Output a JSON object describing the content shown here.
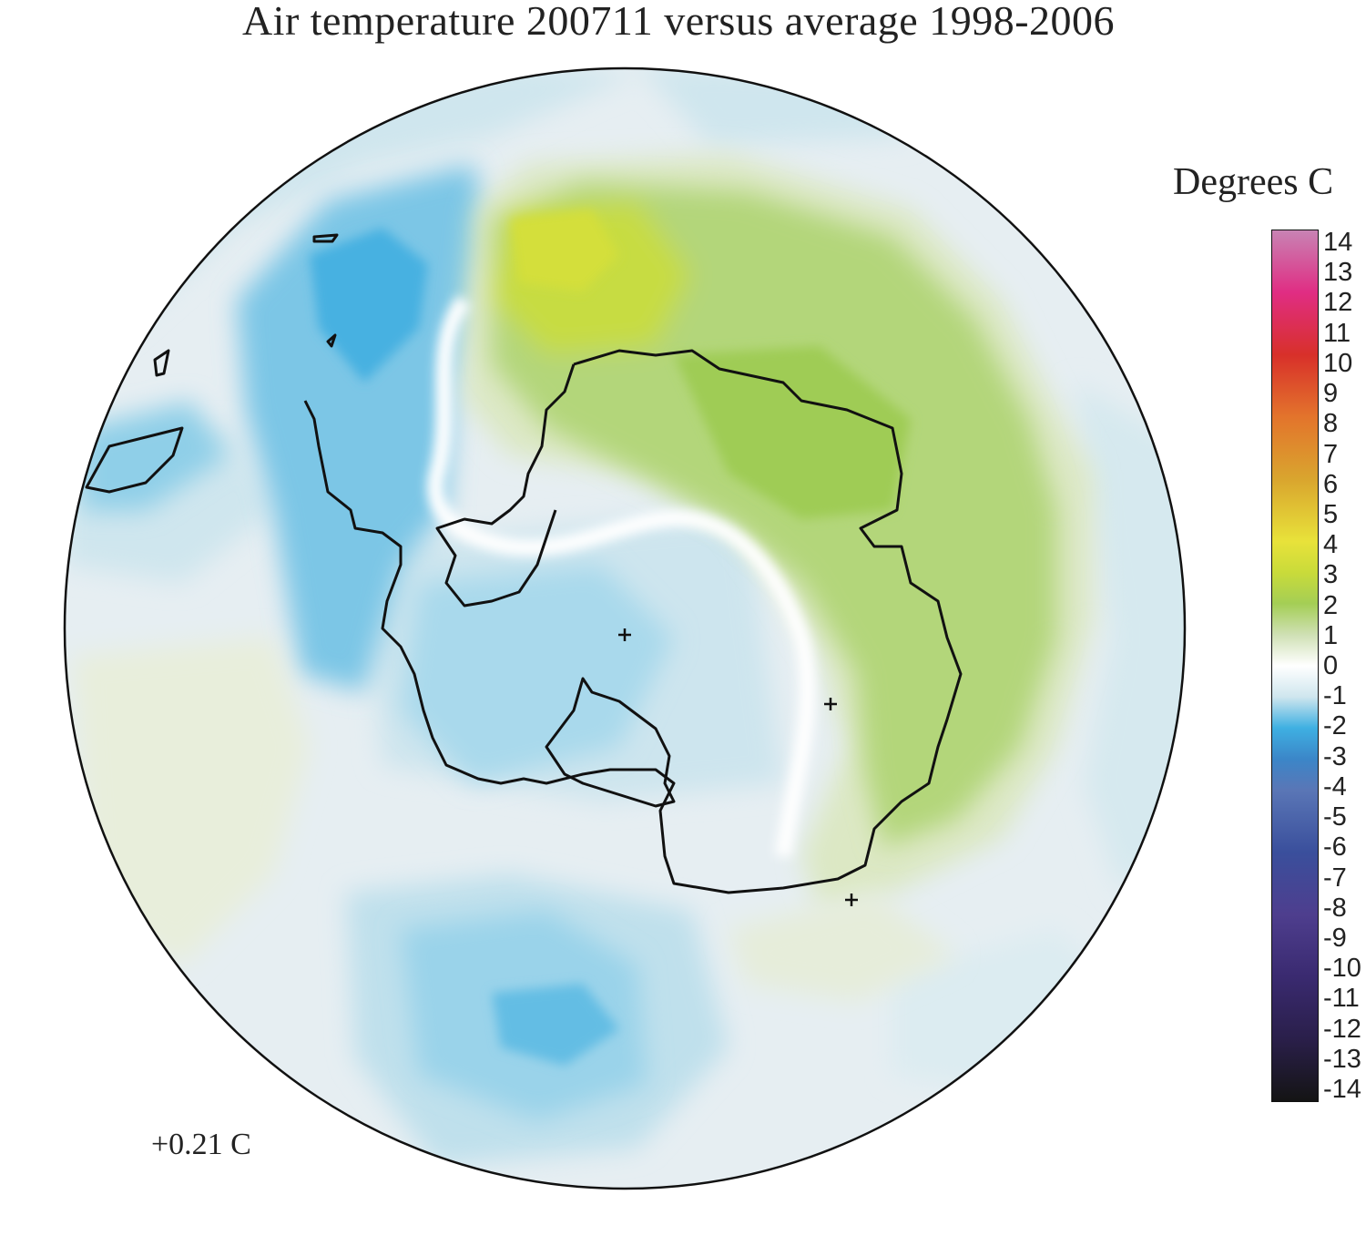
{
  "map": {
    "title": "Air temperature 200711 versus average 1998-2006",
    "global_mean_annotation": "+0.21 C",
    "projection": "south-polar-stereographic",
    "markers": [
      "pole-marker",
      "station-marker",
      "station-marker"
    ],
    "shading": {
      "warm_region": "green anomaly +1 to +4 over the Indian Ocean sector and East Antarctica",
      "cool_region": "blue anomaly -1 to -3 over the Antarctic Peninsula, South Atlantic and Pacific"
    }
  },
  "legend": {
    "title": "Degrees C",
    "ticks": [
      "14",
      "13",
      "12",
      "11",
      "10",
      "9",
      "8",
      "7",
      "6",
      "5",
      "4",
      "3",
      "2",
      "1",
      "0",
      "-1",
      "-2",
      "-3",
      "-4",
      "-5",
      "-6",
      "-7",
      "-8",
      "-9",
      "-10",
      "-11",
      "-12",
      "-13",
      "-14"
    ],
    "colors": {
      "14": "#c883b4",
      "12": "#e02d83",
      "10": "#d8302a",
      "8": "#e3742c",
      "6": "#d9a52e",
      "4": "#e8e23a",
      "3": "#c9db3a",
      "2": "#a4ce55",
      "1": "#cfe0b4",
      "0": "#ffffff",
      "-1": "#cfe6ee",
      "-2": "#3fb0e2",
      "-3": "#3b86c8",
      "-4": "#5a76b6",
      "-6": "#3a4f9c",
      "-8": "#4e3e8e",
      "-10": "#3a2a70",
      "-12": "#2a1f4a",
      "-14": "#141414"
    }
  }
}
